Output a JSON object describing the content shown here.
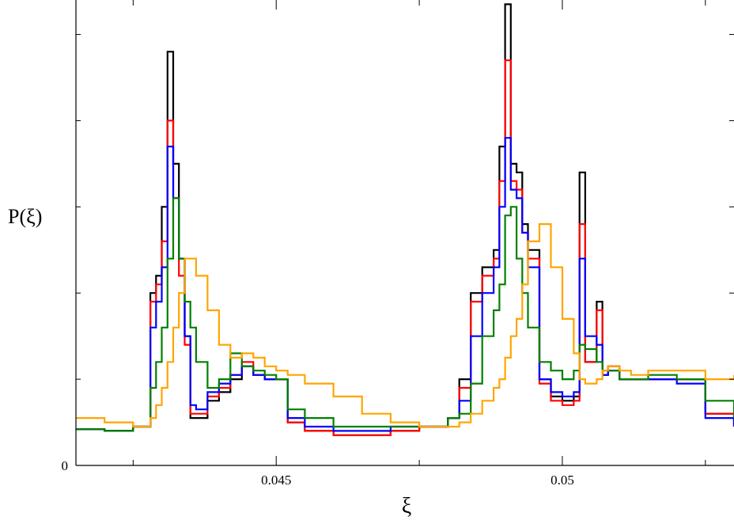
{
  "chart_data": {
    "type": "line",
    "title": "",
    "xlabel": "ξ",
    "ylabel": "P(ξ)",
    "xlim": [
      0.0415,
      0.053
    ],
    "ylim": [
      0,
      5.4
    ],
    "x_ticks": [
      {
        "value": 0.045,
        "label": "0.045"
      },
      {
        "value": 0.05,
        "label": "0.05"
      }
    ],
    "y_ticks": [
      {
        "value": 0,
        "label": "0"
      }
    ],
    "grid": false,
    "legend": "none",
    "series": [
      {
        "color": "#000000",
        "x": [
          0.0415,
          0.042,
          0.0425,
          0.0428,
          0.0429,
          0.043,
          0.0431,
          0.0432,
          0.0433,
          0.0434,
          0.0435,
          0.0436,
          0.0438,
          0.044,
          0.0442,
          0.0444,
          0.0446,
          0.0448,
          0.045,
          0.0452,
          0.0455,
          0.046,
          0.0465,
          0.047,
          0.0475,
          0.048,
          0.0482,
          0.0484,
          0.0486,
          0.0488,
          0.0489,
          0.049,
          0.0491,
          0.0492,
          0.0493,
          0.0494,
          0.0496,
          0.0498,
          0.05,
          0.0502,
          0.0503,
          0.0504,
          0.0506,
          0.0507,
          0.0508,
          0.051,
          0.0512,
          0.0515,
          0.052,
          0.0525,
          0.053
        ],
        "y": [
          0.42,
          0.4,
          0.45,
          2.0,
          2.2,
          3.0,
          4.8,
          3.5,
          2.4,
          1.5,
          0.55,
          0.55,
          0.75,
          0.85,
          1.0,
          1.15,
          1.05,
          1.0,
          1.0,
          0.5,
          0.4,
          0.35,
          0.35,
          0.4,
          0.45,
          0.55,
          1.0,
          2.0,
          2.3,
          2.5,
          3.7,
          5.35,
          3.5,
          3.4,
          2.8,
          2.5,
          1.0,
          0.8,
          0.75,
          0.8,
          3.4,
          1.2,
          1.9,
          1.05,
          1.15,
          1.0,
          1.0,
          1.0,
          1.0,
          0.6,
          0.45
        ]
      },
      {
        "color": "#ff0000",
        "x": [
          0.0415,
          0.042,
          0.0425,
          0.0428,
          0.0429,
          0.043,
          0.0431,
          0.0432,
          0.0433,
          0.0434,
          0.0435,
          0.0436,
          0.0438,
          0.044,
          0.0442,
          0.0444,
          0.0446,
          0.0448,
          0.045,
          0.0452,
          0.0455,
          0.046,
          0.0465,
          0.047,
          0.0475,
          0.048,
          0.0482,
          0.0484,
          0.0486,
          0.0488,
          0.0489,
          0.049,
          0.0491,
          0.0492,
          0.0493,
          0.0494,
          0.0496,
          0.0498,
          0.05,
          0.0502,
          0.0503,
          0.0504,
          0.0506,
          0.0507,
          0.0508,
          0.051,
          0.0512,
          0.0515,
          0.052,
          0.0525,
          0.053
        ],
        "y": [
          0.42,
          0.4,
          0.45,
          1.9,
          2.1,
          2.6,
          4.0,
          3.1,
          2.2,
          1.4,
          0.6,
          0.6,
          0.8,
          0.9,
          1.05,
          1.2,
          1.05,
          1.0,
          1.0,
          0.5,
          0.4,
          0.35,
          0.35,
          0.4,
          0.45,
          0.55,
          0.9,
          1.9,
          2.2,
          2.4,
          3.3,
          4.7,
          3.3,
          3.2,
          2.7,
          2.4,
          0.95,
          0.75,
          0.7,
          0.75,
          2.8,
          1.2,
          1.8,
          1.05,
          1.15,
          1.0,
          1.0,
          1.0,
          1.0,
          0.6,
          0.45
        ]
      },
      {
        "color": "#0000ff",
        "x": [
          0.0415,
          0.042,
          0.0425,
          0.0428,
          0.0429,
          0.043,
          0.0431,
          0.0432,
          0.0433,
          0.0434,
          0.0435,
          0.0436,
          0.0438,
          0.044,
          0.0442,
          0.0444,
          0.0446,
          0.0448,
          0.045,
          0.0452,
          0.0455,
          0.046,
          0.0465,
          0.047,
          0.0475,
          0.048,
          0.0482,
          0.0484,
          0.0486,
          0.0488,
          0.0489,
          0.049,
          0.0491,
          0.0492,
          0.0493,
          0.0494,
          0.0496,
          0.0498,
          0.05,
          0.0502,
          0.0503,
          0.0504,
          0.0506,
          0.0507,
          0.0508,
          0.051,
          0.0512,
          0.0515,
          0.052,
          0.0525,
          0.053
        ],
        "y": [
          0.42,
          0.4,
          0.45,
          1.6,
          1.9,
          2.3,
          3.7,
          3.1,
          2.4,
          1.5,
          0.7,
          0.65,
          0.85,
          0.95,
          1.05,
          1.15,
          1.05,
          1.0,
          1.0,
          0.55,
          0.45,
          0.4,
          0.4,
          0.45,
          0.45,
          0.55,
          0.75,
          1.5,
          2.0,
          2.3,
          3.0,
          3.8,
          3.2,
          3.1,
          2.7,
          2.3,
          1.0,
          0.85,
          0.8,
          0.85,
          2.4,
          1.5,
          1.4,
          1.05,
          1.1,
          1.0,
          1.0,
          1.0,
          0.95,
          0.55,
          0.45
        ]
      },
      {
        "color": "#008000",
        "x": [
          0.0415,
          0.042,
          0.0425,
          0.0428,
          0.0429,
          0.043,
          0.0431,
          0.0432,
          0.0433,
          0.0434,
          0.0435,
          0.0436,
          0.0438,
          0.044,
          0.0442,
          0.0444,
          0.0446,
          0.0448,
          0.045,
          0.0452,
          0.0455,
          0.046,
          0.0465,
          0.047,
          0.0475,
          0.048,
          0.0482,
          0.0484,
          0.0486,
          0.0488,
          0.0489,
          0.049,
          0.0491,
          0.0492,
          0.0493,
          0.0494,
          0.0496,
          0.0498,
          0.05,
          0.0502,
          0.0503,
          0.0504,
          0.0506,
          0.0507,
          0.0508,
          0.051,
          0.0512,
          0.0515,
          0.052,
          0.0525,
          0.053
        ],
        "y": [
          0.42,
          0.4,
          0.45,
          0.9,
          1.2,
          1.6,
          2.4,
          3.1,
          2.4,
          1.9,
          1.6,
          1.2,
          0.9,
          1.0,
          1.3,
          1.15,
          1.1,
          1.05,
          1.0,
          0.65,
          0.55,
          0.45,
          0.45,
          0.45,
          0.45,
          0.55,
          0.6,
          0.95,
          1.5,
          1.8,
          2.1,
          2.9,
          3.0,
          2.4,
          2.0,
          1.6,
          1.2,
          1.1,
          1.0,
          1.1,
          1.4,
          1.35,
          1.2,
          1.1,
          1.1,
          1.0,
          1.0,
          1.05,
          1.0,
          0.75,
          0.55
        ]
      },
      {
        "color": "#ffa500",
        "x": [
          0.0415,
          0.042,
          0.0425,
          0.0428,
          0.0429,
          0.043,
          0.0431,
          0.0432,
          0.0433,
          0.0434,
          0.0435,
          0.0436,
          0.0438,
          0.044,
          0.0442,
          0.0444,
          0.0446,
          0.0448,
          0.045,
          0.0452,
          0.0455,
          0.046,
          0.0465,
          0.047,
          0.0475,
          0.048,
          0.0482,
          0.0484,
          0.0486,
          0.0488,
          0.0489,
          0.049,
          0.0491,
          0.0492,
          0.0493,
          0.0494,
          0.0496,
          0.0498,
          0.05,
          0.0502,
          0.0503,
          0.0504,
          0.0506,
          0.0507,
          0.0508,
          0.051,
          0.0512,
          0.0515,
          0.052,
          0.0525,
          0.053
        ],
        "y": [
          0.55,
          0.5,
          0.45,
          0.55,
          0.7,
          0.9,
          1.2,
          1.6,
          2.0,
          2.4,
          2.4,
          2.2,
          1.8,
          1.4,
          1.25,
          1.3,
          1.25,
          1.15,
          1.1,
          1.05,
          0.95,
          0.8,
          0.6,
          0.5,
          0.45,
          0.45,
          0.5,
          0.6,
          0.75,
          0.9,
          1.0,
          1.25,
          1.5,
          1.7,
          2.1,
          2.6,
          2.8,
          2.3,
          1.7,
          1.3,
          1.0,
          0.95,
          1.0,
          1.1,
          1.15,
          1.1,
          1.05,
          1.1,
          1.1,
          1.0,
          1.05
        ]
      }
    ]
  }
}
